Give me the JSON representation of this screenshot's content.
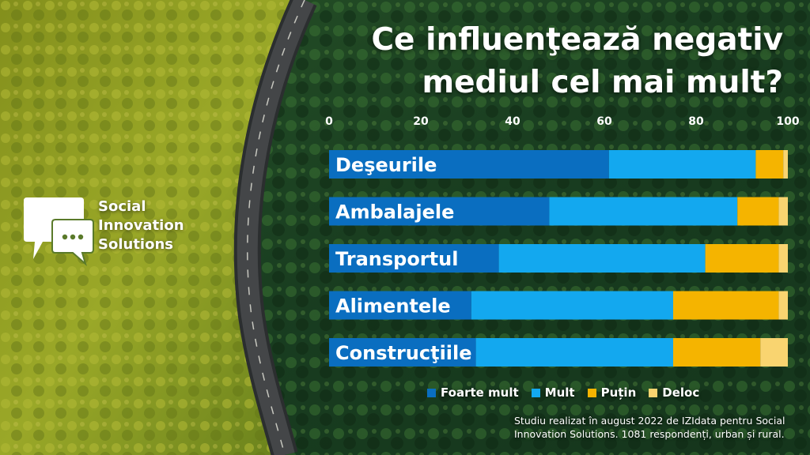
{
  "title_lines": [
    "Ce influenţează negativ",
    "mediul cel mai mult?"
  ],
  "brand": {
    "lines": [
      "Social",
      "Innovation",
      "Solutions"
    ]
  },
  "source_note": "Studiu realizat în august 2022 de IZIdata pentru Social Innovation Solutions. 1081 respondenți, urban și rural.",
  "colors": {
    "foarte_mult": "#0a6ec0",
    "mult": "#13a8ef",
    "putin": "#f5b400",
    "deloc": "#f9d470",
    "label_text": "#ffffff",
    "forest_light": "#9fae2a",
    "forest_dark": "#1f4a26",
    "road": "#4a4d4f"
  },
  "chart_data": {
    "type": "bar",
    "orientation": "horizontal",
    "stacked": true,
    "categories": [
      "Deşeurile",
      "Ambalajele",
      "Transportul",
      "Alimentele",
      "Construcţiile"
    ],
    "series": [
      {
        "name": "Foarte mult",
        "values": [
          61,
          48,
          37,
          31,
          32
        ]
      },
      {
        "name": "Mult",
        "values": [
          32,
          41,
          45,
          44,
          43
        ]
      },
      {
        "name": "Puțin",
        "values": [
          6,
          9,
          16,
          23,
          19
        ]
      },
      {
        "name": "Deloc",
        "values": [
          1,
          2,
          2,
          2,
          6
        ]
      }
    ],
    "xlim": [
      0,
      100
    ],
    "xticks": [
      "0",
      "20",
      "40",
      "60",
      "80",
      "100"
    ],
    "grid": false,
    "legend_position": "bottom"
  }
}
